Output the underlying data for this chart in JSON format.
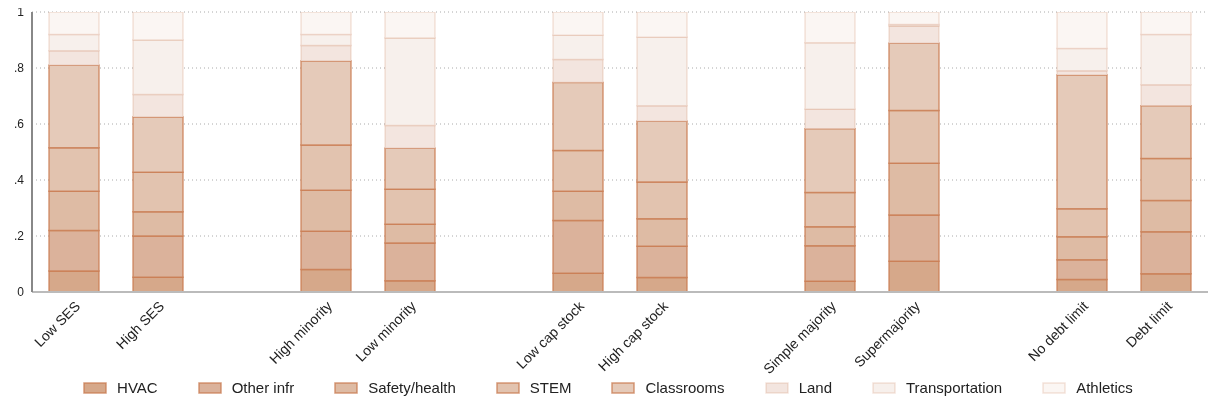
{
  "chart_data": {
    "type": "bar",
    "stacked": true,
    "categories": [
      "Low SES",
      "High SES",
      null,
      "High minority",
      "Low minority",
      null,
      "Low cap stock",
      "High cap stock",
      null,
      "Simple majority",
      "Supermajority",
      null,
      "No debt limit",
      "Debt limit"
    ],
    "series": [
      {
        "name": "HVAC",
        "color": "#d6a88a",
        "values": [
          0.075,
          0.053,
          null,
          0.08,
          0.04,
          null,
          0.067,
          0.052,
          null,
          0.038,
          0.11,
          null,
          0.045,
          0.065
        ]
      },
      {
        "name": "Other infr",
        "color": "#dbb29b",
        "values": [
          0.145,
          0.147,
          null,
          0.137,
          0.135,
          null,
          0.188,
          0.111,
          null,
          0.127,
          0.165,
          null,
          0.07,
          0.15
        ]
      },
      {
        "name": "Safety/health",
        "color": "#debba4",
        "values": [
          0.14,
          0.087,
          null,
          0.146,
          0.067,
          null,
          0.105,
          0.099,
          null,
          0.068,
          0.185,
          null,
          0.082,
          0.112
        ]
      },
      {
        "name": "STEM",
        "color": "#e2c3af",
        "values": [
          0.155,
          0.141,
          null,
          0.162,
          0.125,
          null,
          0.145,
          0.131,
          null,
          0.122,
          0.188,
          null,
          0.1,
          0.15
        ]
      },
      {
        "name": "Classrooms",
        "color": "#e5cab9",
        "values": [
          0.295,
          0.197,
          null,
          0.3,
          0.146,
          null,
          0.243,
          0.217,
          null,
          0.228,
          0.24,
          null,
          0.478,
          0.188
        ]
      },
      {
        "name": "Land",
        "color": "#f3e5df",
        "values": [
          0.052,
          0.08,
          null,
          0.055,
          0.082,
          null,
          0.082,
          0.055,
          null,
          0.07,
          0.062,
          null,
          0.015,
          0.075
        ]
      },
      {
        "name": "Transportation",
        "color": "#f7f0ec",
        "values": [
          0.058,
          0.195,
          null,
          0.04,
          0.312,
          null,
          0.087,
          0.245,
          null,
          0.237,
          0.005,
          null,
          0.08,
          0.18
        ]
      },
      {
        "name": "Athletics",
        "color": "#fbf6f3",
        "values": [
          0.08,
          0.1,
          null,
          0.08,
          0.093,
          null,
          0.083,
          0.09,
          null,
          0.11,
          0.045,
          null,
          0.13,
          0.08
        ]
      }
    ],
    "ylim": [
      0,
      1
    ],
    "yticks": [
      0,
      {
        "value": 0.2,
        "label": ".2"
      },
      {
        "value": 0.4,
        "label": ".4"
      },
      {
        "value": 0.6,
        "label": ".6"
      },
      {
        "value": 0.8,
        "label": ".8"
      },
      1
    ],
    "grid": "y",
    "legend": "bottom"
  }
}
